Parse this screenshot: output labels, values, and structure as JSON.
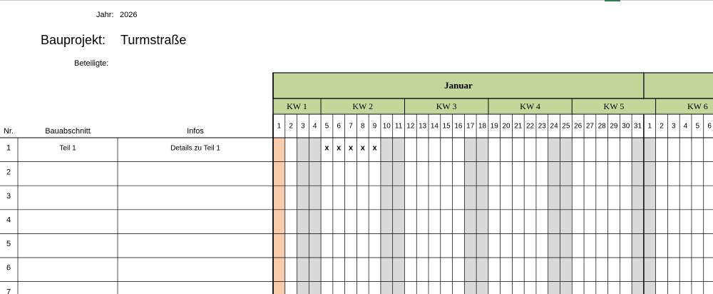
{
  "header": {
    "year_label": "Jahr:",
    "year": "2026",
    "project_label": "Bauprojekt:",
    "project": "Turmstraße",
    "participants_label": "Beteiligte:"
  },
  "columns": {
    "nr": "Nr.",
    "section": "Bauabschnitt",
    "info": "Infos"
  },
  "months": [
    {
      "name": "Januar",
      "days": [
        1,
        2,
        3,
        4,
        5,
        6,
        7,
        8,
        9,
        10,
        11,
        12,
        13,
        14,
        15,
        16,
        17,
        18,
        19,
        20,
        21,
        22,
        23,
        24,
        25,
        26,
        27,
        28,
        29,
        30,
        31
      ]
    },
    {
      "days": [
        1,
        2,
        3,
        4,
        5,
        6
      ]
    }
  ],
  "weeks": [
    "KW 1",
    "KW 2",
    "KW 3",
    "KW 4",
    "KW 5",
    "KW 6"
  ],
  "rows": [
    {
      "nr": 1,
      "section": "Teil 1",
      "info": "Details zu Teil 1",
      "entries": [
        {
          "day": 5,
          "text": "x"
        },
        {
          "day": 6,
          "text": "x"
        },
        {
          "day": 7,
          "text": "x"
        },
        {
          "day": 8,
          "text": "x"
        },
        {
          "day": 9,
          "text": "x"
        }
      ]
    },
    {
      "nr": 2
    },
    {
      "nr": 3
    },
    {
      "nr": 4
    },
    {
      "nr": 5
    },
    {
      "nr": 6
    },
    {
      "nr": 7
    }
  ]
}
